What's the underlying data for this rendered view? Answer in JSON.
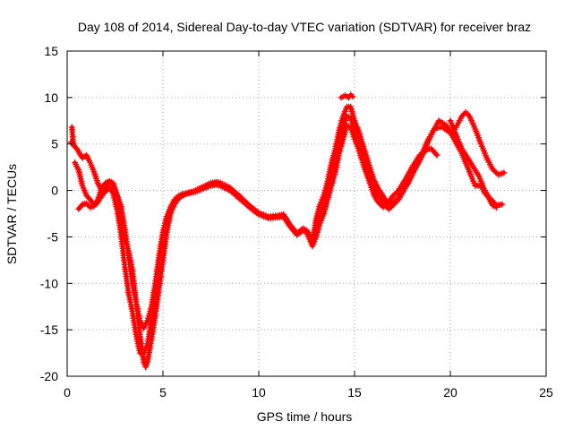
{
  "chart_data": {
    "type": "scatter",
    "title": "Day 108 of 2014, Sidereal Day-to-day VTEC variation (SDTVAR) for receiver braz",
    "xlabel": "GPS time / hours",
    "ylabel": "SDTVAR / TECUs",
    "xlim": [
      0,
      25
    ],
    "ylim": [
      -20,
      15
    ],
    "x_ticks": [
      0,
      5,
      10,
      15,
      20,
      25
    ],
    "x_tick_labels": [
      "0",
      "5",
      "10",
      "15",
      "20",
      "25"
    ],
    "y_ticks": [
      -20,
      -15,
      -10,
      -5,
      0,
      5,
      10,
      15
    ],
    "y_tick_labels": [
      "-20",
      "-15",
      "-10",
      "-5",
      "0",
      "5",
      "10",
      "15"
    ],
    "grid": true,
    "marker": "+",
    "series": [
      {
        "name": "SDTVAR",
        "color": "#ff0000",
        "tracks": [
          [
            [
              0.2,
              5.2
            ],
            [
              0.5,
              4.5
            ],
            [
              0.8,
              3.5
            ],
            [
              1.0,
              3.8
            ],
            [
              1.2,
              3.0
            ],
            [
              1.4,
              2.0
            ],
            [
              1.6,
              0.8
            ],
            [
              1.8,
              0.0
            ],
            [
              2.0,
              0.4
            ],
            [
              2.2,
              0.9
            ],
            [
              2.4,
              0.6
            ],
            [
              2.6,
              -0.6
            ],
            [
              2.8,
              -3.2
            ],
            [
              3.0,
              -5.2
            ],
            [
              3.2,
              -6.5
            ],
            [
              3.4,
              -8.5
            ],
            [
              3.6,
              -12.0
            ],
            [
              3.8,
              -15.5
            ],
            [
              4.0,
              -18.5
            ],
            [
              4.1,
              -19.0
            ],
            [
              4.2,
              -18.4
            ],
            [
              4.4,
              -16.0
            ],
            [
              4.6,
              -13.5
            ],
            [
              4.8,
              -10.5
            ],
            [
              5.0,
              -7.5
            ],
            [
              5.2,
              -4.5
            ],
            [
              5.4,
              -2.5
            ],
            [
              5.6,
              -1.5
            ],
            [
              5.8,
              -0.9
            ],
            [
              6.0,
              -0.6
            ],
            [
              6.2,
              -0.4
            ],
            [
              6.5,
              -0.2
            ],
            [
              7.0,
              0.3
            ],
            [
              7.5,
              0.8
            ],
            [
              7.8,
              0.9
            ],
            [
              8.0,
              0.8
            ],
            [
              8.5,
              0.3
            ],
            [
              9.0,
              -0.6
            ],
            [
              9.5,
              -1.6
            ],
            [
              10.0,
              -2.4
            ],
            [
              10.5,
              -2.8
            ],
            [
              11.0,
              -2.7
            ],
            [
              11.3,
              -2.6
            ],
            [
              11.6,
              -3.6
            ],
            [
              12.0,
              -4.6
            ],
            [
              12.3,
              -4.1
            ],
            [
              12.5,
              -4.3
            ],
            [
              12.8,
              -5.2
            ],
            [
              13.0,
              -4.0
            ],
            [
              13.2,
              -2.5
            ],
            [
              13.4,
              -1.5
            ],
            [
              13.6,
              0.0
            ],
            [
              13.8,
              2.0
            ],
            [
              14.0,
              3.5
            ],
            [
              14.2,
              5.5
            ],
            [
              14.4,
              6.8
            ],
            [
              14.6,
              8.0
            ],
            [
              14.8,
              7.8
            ],
            [
              15.0,
              6.5
            ],
            [
              15.2,
              5.5
            ],
            [
              15.5,
              3.5
            ],
            [
              15.8,
              1.8
            ],
            [
              16.0,
              0.5
            ],
            [
              16.2,
              -0.3
            ],
            [
              16.5,
              -1.5
            ],
            [
              16.8,
              -2.0
            ],
            [
              17.0,
              -1.6
            ],
            [
              17.3,
              -1.0
            ],
            [
              17.6,
              0.2
            ],
            [
              18.0,
              1.8
            ],
            [
              18.4,
              3.3
            ],
            [
              18.8,
              5.3
            ],
            [
              19.2,
              6.7
            ],
            [
              19.6,
              6.8
            ],
            [
              20.0,
              6.2
            ],
            [
              20.3,
              6.8
            ],
            [
              20.6,
              8.0
            ],
            [
              20.8,
              8.4
            ],
            [
              21.0,
              8.0
            ],
            [
              21.3,
              6.6
            ],
            [
              21.6,
              5.0
            ],
            [
              21.9,
              3.5
            ],
            [
              22.2,
              2.3
            ],
            [
              22.5,
              1.7
            ],
            [
              22.8,
              1.9
            ]
          ],
          [
            [
              0.6,
              -2.0
            ],
            [
              0.8,
              -1.5
            ],
            [
              1.0,
              -1.4
            ],
            [
              1.2,
              -1.8
            ],
            [
              1.4,
              -1.7
            ],
            [
              1.6,
              -1.3
            ],
            [
              1.8,
              -0.6
            ],
            [
              2.0,
              -0.1
            ],
            [
              2.2,
              0.3
            ],
            [
              2.4,
              -0.3
            ],
            [
              2.6,
              -2.0
            ],
            [
              2.8,
              -4.5
            ],
            [
              3.0,
              -8.0
            ],
            [
              3.2,
              -11.0
            ],
            [
              3.4,
              -13.0
            ],
            [
              3.6,
              -15.5
            ],
            [
              3.8,
              -17.5
            ],
            [
              4.0,
              -17.5
            ],
            [
              4.2,
              -16.5
            ],
            [
              4.4,
              -14.0
            ],
            [
              4.6,
              -11.0
            ],
            [
              4.8,
              -7.5
            ],
            [
              5.0,
              -5.0
            ],
            [
              5.2,
              -3.0
            ],
            [
              5.4,
              -2.0
            ],
            [
              5.6,
              -1.2
            ],
            [
              5.8,
              -0.8
            ],
            [
              6.0,
              -0.5
            ],
            [
              6.2,
              -0.3
            ],
            [
              6.6,
              -0.2
            ],
            [
              7.0,
              0.1
            ],
            [
              7.5,
              0.5
            ],
            [
              7.8,
              0.6
            ],
            [
              8.0,
              0.5
            ],
            [
              8.5,
              0.0
            ],
            [
              9.0,
              -0.9
            ],
            [
              9.5,
              -1.8
            ],
            [
              10.0,
              -2.6
            ],
            [
              10.5,
              -3.0
            ],
            [
              11.0,
              -2.9
            ],
            [
              11.3,
              -2.8
            ],
            [
              11.6,
              -3.8
            ],
            [
              12.0,
              -4.8
            ],
            [
              12.3,
              -4.3
            ],
            [
              12.5,
              -4.5
            ],
            [
              12.8,
              -6.0
            ],
            [
              13.0,
              -5.0
            ],
            [
              13.2,
              -3.5
            ],
            [
              13.4,
              -2.5
            ],
            [
              13.6,
              -1.0
            ],
            [
              13.8,
              0.5
            ],
            [
              14.0,
              2.0
            ],
            [
              14.2,
              4.0
            ],
            [
              14.4,
              5.5
            ],
            [
              14.6,
              7.0
            ],
            [
              14.8,
              6.8
            ],
            [
              15.0,
              5.5
            ],
            [
              15.2,
              4.5
            ],
            [
              15.5,
              2.5
            ],
            [
              15.8,
              0.8
            ],
            [
              16.0,
              -0.4
            ],
            [
              16.2,
              -1.2
            ],
            [
              16.5,
              -1.8
            ],
            [
              16.8,
              -1.2
            ],
            [
              17.0,
              -0.6
            ],
            [
              17.3,
              0.0
            ],
            [
              17.6,
              1.0
            ],
            [
              18.0,
              2.5
            ],
            [
              18.4,
              3.8
            ],
            [
              18.8,
              4.4
            ],
            [
              19.0,
              4.5
            ],
            [
              19.3,
              3.8
            ]
          ],
          [
            [
              0.4,
              3.0
            ],
            [
              0.6,
              2.2
            ],
            [
              0.8,
              0.5
            ],
            [
              1.0,
              -0.5
            ],
            [
              1.2,
              -1.0
            ],
            [
              1.4,
              -1.5
            ],
            [
              1.6,
              -1.0
            ],
            [
              1.8,
              0.3
            ],
            [
              2.0,
              0.8
            ],
            [
              2.2,
              1.0
            ],
            [
              2.4,
              0.8
            ],
            [
              2.6,
              -0.5
            ],
            [
              2.8,
              -1.5
            ],
            [
              3.0,
              -4.0
            ],
            [
              3.2,
              -7.0
            ],
            [
              3.4,
              -10.0
            ],
            [
              3.6,
              -12.0
            ],
            [
              3.8,
              -14.0
            ],
            [
              4.0,
              -14.8
            ],
            [
              4.2,
              -14.0
            ],
            [
              4.4,
              -12.5
            ],
            [
              4.6,
              -10.0
            ],
            [
              4.8,
              -7.0
            ],
            [
              5.0,
              -4.5
            ],
            [
              5.2,
              -2.8
            ],
            [
              5.4,
              -1.8
            ],
            [
              5.6,
              -1.0
            ],
            [
              5.8,
              -0.6
            ],
            [
              6.0,
              -0.4
            ],
            [
              6.2,
              -0.3
            ],
            [
              6.6,
              -0.1
            ],
            [
              7.0,
              0.2
            ],
            [
              7.5,
              0.7
            ],
            [
              7.8,
              0.8
            ],
            [
              8.0,
              0.7
            ],
            [
              8.5,
              0.2
            ],
            [
              9.0,
              -0.7
            ],
            [
              9.5,
              -1.7
            ],
            [
              10.0,
              -2.5
            ],
            [
              10.5,
              -2.9
            ],
            [
              11.0,
              -2.8
            ],
            [
              11.3,
              -2.7
            ],
            [
              11.6,
              -3.7
            ],
            [
              12.0,
              -4.7
            ],
            [
              12.3,
              -4.2
            ],
            [
              12.5,
              -4.4
            ],
            [
              12.8,
              -5.5
            ],
            [
              13.0,
              -3.0
            ],
            [
              13.2,
              -1.5
            ],
            [
              13.4,
              -0.5
            ],
            [
              13.6,
              1.0
            ],
            [
              13.8,
              3.0
            ],
            [
              14.0,
              4.5
            ],
            [
              14.2,
              6.5
            ],
            [
              14.4,
              8.0
            ],
            [
              14.6,
              9.0
            ],
            [
              14.8,
              9.0
            ],
            [
              15.0,
              7.5
            ],
            [
              15.2,
              6.5
            ],
            [
              15.5,
              4.5
            ],
            [
              15.8,
              2.5
            ],
            [
              16.0,
              1.2
            ],
            [
              16.3,
              0.0
            ],
            [
              16.6,
              -1.0
            ],
            [
              16.9,
              -1.5
            ],
            [
              17.2,
              -1.0
            ],
            [
              17.5,
              -0.2
            ],
            [
              17.8,
              0.8
            ],
            [
              18.2,
              2.5
            ],
            [
              18.6,
              4.0
            ],
            [
              19.0,
              6.0
            ],
            [
              19.4,
              7.5
            ],
            [
              19.8,
              7.0
            ],
            [
              20.2,
              5.5
            ],
            [
              20.6,
              4.0
            ],
            [
              21.0,
              2.0
            ],
            [
              21.3,
              0.5
            ],
            [
              21.6,
              0.5
            ],
            [
              21.8,
              -0.3
            ],
            [
              22.1,
              -0.9
            ],
            [
              22.4,
              -1.6
            ],
            [
              22.7,
              -1.5
            ]
          ],
          [
            [
              0.25,
              6.8
            ],
            [
              0.3,
              5.5
            ],
            [
              0.35,
              4.8
            ]
          ],
          [
            [
              14.3,
              10.0
            ],
            [
              14.5,
              10.2
            ],
            [
              14.7,
              10.0
            ],
            [
              14.8,
              10.3
            ],
            [
              14.9,
              10.1
            ]
          ],
          [
            [
              20.0,
              7.5
            ],
            [
              20.3,
              6.0
            ],
            [
              20.6,
              4.5
            ],
            [
              20.9,
              3.5
            ],
            [
              21.2,
              2.5
            ],
            [
              21.5,
              1.5
            ],
            [
              21.8,
              0.0
            ],
            [
              22.0,
              -0.8
            ],
            [
              22.2,
              -1.6
            ],
            [
              22.4,
              -1.8
            ]
          ]
        ]
      }
    ]
  }
}
